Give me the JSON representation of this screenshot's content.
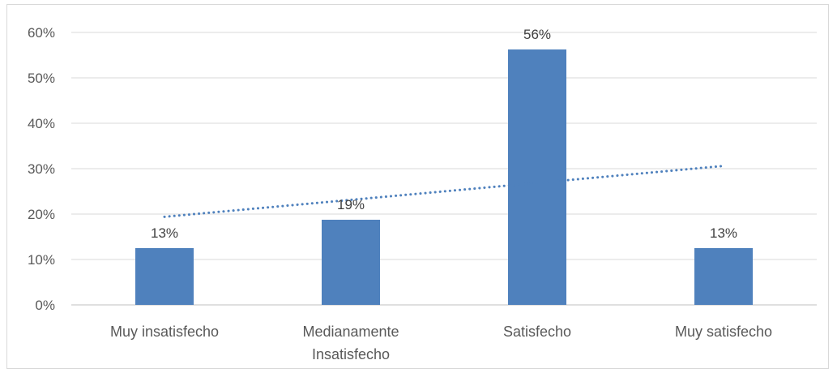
{
  "chart_data": {
    "type": "bar",
    "categories": [
      [
        "Muy insatisfecho"
      ],
      [
        "Medianamente",
        "Insatisfecho"
      ],
      [
        "Satisfecho"
      ],
      [
        "Muy satisfecho"
      ]
    ],
    "values": [
      12.5,
      18.75,
      56.25,
      12.5
    ],
    "data_labels": [
      "13%",
      "19%",
      "56%",
      "13%"
    ],
    "y_ticks": [
      "0%",
      "10%",
      "20%",
      "30%",
      "40%",
      "50%",
      "60%"
    ],
    "ylim": [
      0,
      60
    ],
    "grid": true,
    "legend": "none",
    "trendline": {
      "type": "linear",
      "style": "dotted",
      "start": 19.4,
      "end": 30.6
    },
    "colors": {
      "bar": "#4f81bd",
      "trendline": "#4f81bd",
      "grid": "#d9d9d9",
      "axis": "#bfbfbf"
    }
  }
}
